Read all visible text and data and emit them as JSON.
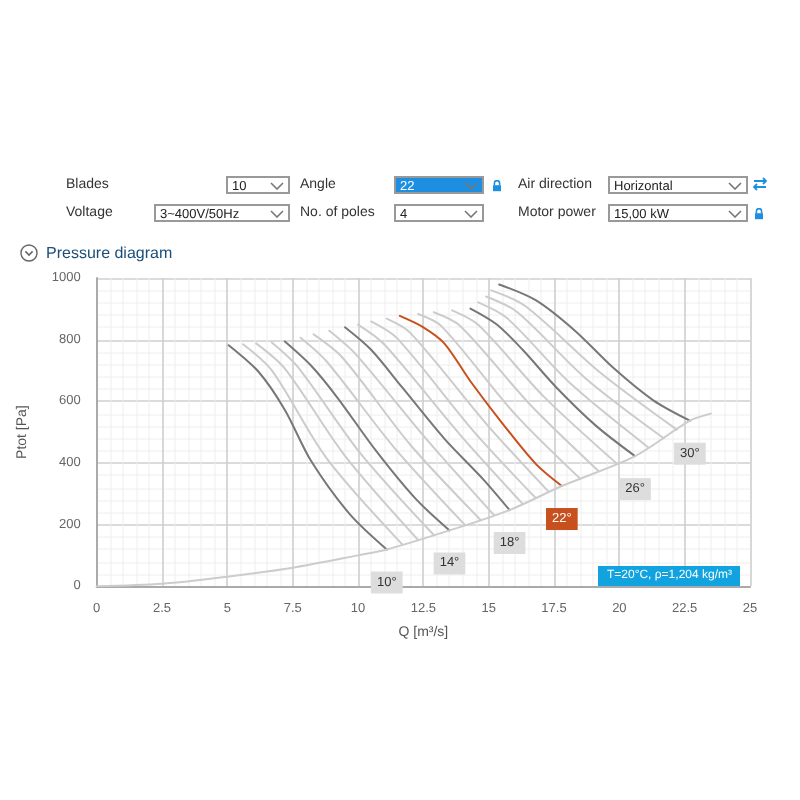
{
  "chart_data": {
    "type": "line",
    "xlabel": "Q [m³/s]",
    "ylabel": "Ptot [Pa]",
    "xlim": [
      0,
      25
    ],
    "xticks": [
      0,
      2.5,
      5,
      7.5,
      10,
      12.5,
      15,
      17.5,
      20,
      22.5,
      25
    ],
    "ylim": [
      0,
      1000
    ],
    "yticks": [
      0,
      200,
      400,
      600,
      800,
      1000
    ],
    "grid": true,
    "marker": "none",
    "line_style": "solid",
    "series": [
      {
        "color": "#777777",
        "x": [
          5.05,
          6.2,
          7.2,
          8.2,
          9.7,
          11.1
        ],
        "values": [
          782,
          695,
          572,
          407,
          232,
          119
        ]
      },
      {
        "color": "#cccccc",
        "x": [
          5.6,
          6.7,
          8.8,
          11.7
        ],
        "values": [
          785,
          700,
          415,
          135
        ]
      },
      {
        "color": "#cccccc",
        "x": [
          6.1,
          7.2,
          9.5,
          12.3
        ],
        "values": [
          788,
          706,
          423,
          150
        ]
      },
      {
        "color": "#cccccc",
        "x": [
          6.7,
          7.7,
          10.1,
          12.9
        ],
        "values": [
          791,
          711,
          430,
          166
        ]
      },
      {
        "color": "#777777",
        "x": [
          7.2,
          8.2,
          9.2,
          10.7,
          12.2,
          13.5
        ],
        "values": [
          794,
          716,
          613,
          438,
          284,
          181
        ]
      },
      {
        "color": "#cccccc",
        "x": [
          7.8,
          8.8,
          11.4,
          14.1
        ],
        "values": [
          806,
          729,
          448,
          198
        ]
      },
      {
        "color": "#cccccc",
        "x": [
          8.3,
          9.4,
          12,
          14.7
        ],
        "values": [
          817,
          742,
          459,
          214
        ]
      },
      {
        "color": "#cccccc",
        "x": [
          8.9,
          9.9,
          12.7,
          15.2
        ],
        "values": [
          829,
          754,
          469,
          231
        ]
      },
      {
        "color": "#777777",
        "x": [
          9.5,
          10.5,
          11.7,
          13.3,
          14.8,
          15.8
        ],
        "values": [
          840,
          767,
          644,
          479,
          346,
          247
        ]
      },
      {
        "color": "#cccccc",
        "x": [
          10,
          11,
          13.9,
          16.3
        ],
        "values": [
          849,
          785,
          492,
          267
        ]
      },
      {
        "color": "#cccccc",
        "x": [
          10.5,
          11.5,
          14.4,
          16.8
        ],
        "values": [
          859,
          804,
          505,
          286
        ]
      },
      {
        "color": "#cccccc",
        "x": [
          11.1,
          12,
          15,
          17.3
        ],
        "values": [
          868,
          822,
          518,
          306
        ]
      },
      {
        "color": "#c8501e",
        "x": [
          11.6,
          12.5,
          13.3,
          14.3,
          15.5,
          16.8,
          17.8
        ],
        "values": [
          877,
          840,
          788,
          665,
          531,
          397,
          325
        ]
      },
      {
        "color": "#cccccc",
        "x": [
          12.3,
          13.2,
          16,
          18.5
        ],
        "values": [
          883,
          843,
          559,
          349
        ]
      },
      {
        "color": "#cccccc",
        "x": [
          12.9,
          13.9,
          16.6,
          19.2
        ],
        "values": [
          889,
          845,
          588,
          374
        ]
      },
      {
        "color": "#cccccc",
        "x": [
          13.6,
          14.6,
          17.1,
          19.9
        ],
        "values": [
          895,
          848,
          616,
          398
        ]
      },
      {
        "color": "#777777",
        "x": [
          14.3,
          15.3,
          16.3,
          17.6,
          19.1,
          20.6
        ],
        "values": [
          901,
          850,
          767,
          644,
          521,
          422
        ]
      },
      {
        "color": "#cccccc",
        "x": [
          14.6,
          15.7,
          18.1,
          21.1
        ],
        "values": [
          921,
          870,
          660,
          451
        ]
      },
      {
        "color": "#cccccc",
        "x": [
          14.9,
          16.1,
          18.7,
          21.7
        ],
        "values": [
          940,
          889,
          675,
          480
        ]
      },
      {
        "color": "#cccccc",
        "x": [
          15.1,
          16.4,
          19.3,
          22.2
        ],
        "values": [
          960,
          909,
          691,
          508
        ]
      },
      {
        "color": "#777777",
        "x": [
          15.4,
          16.8,
          18.3,
          19.8,
          21.3,
          22.7
        ],
        "values": [
          979,
          928,
          829,
          706,
          603,
          537
        ]
      },
      {
        "color": "#cccccc",
        "x": [
          0,
          2.5,
          5,
          7.5,
          10,
          11.1,
          13.5,
          15.8,
          17.8,
          20.6,
          22.7,
          23.5
        ],
        "values": [
          0,
          8,
          31,
          60,
          100,
          119,
          181,
          247,
          325,
          422,
          537,
          560
        ]
      }
    ],
    "annotations": [
      "Blades",
      "10",
      "Angle",
      "22",
      "Air direction",
      "Horizontal",
      "Voltage",
      "3~400V/50Hz",
      "No. of poles",
      "4",
      "Motor power",
      "15,00 kW",
      "Pressure diagram",
      "T=20°C, ρ=1,204 kg/m³",
      {
        "text": "10°",
        "x": 11.1,
        "y": 119
      },
      {
        "text": "14°",
        "x": 13.5,
        "y": 181
      },
      {
        "text": "18°",
        "x": 15.8,
        "y": 247
      },
      {
        "text": "22°",
        "x": 17.8,
        "y": 325
      },
      {
        "text": "26°",
        "x": 20.6,
        "y": 422
      },
      {
        "text": "30°",
        "x": 22.7,
        "y": 537
      }
    ]
  }
}
